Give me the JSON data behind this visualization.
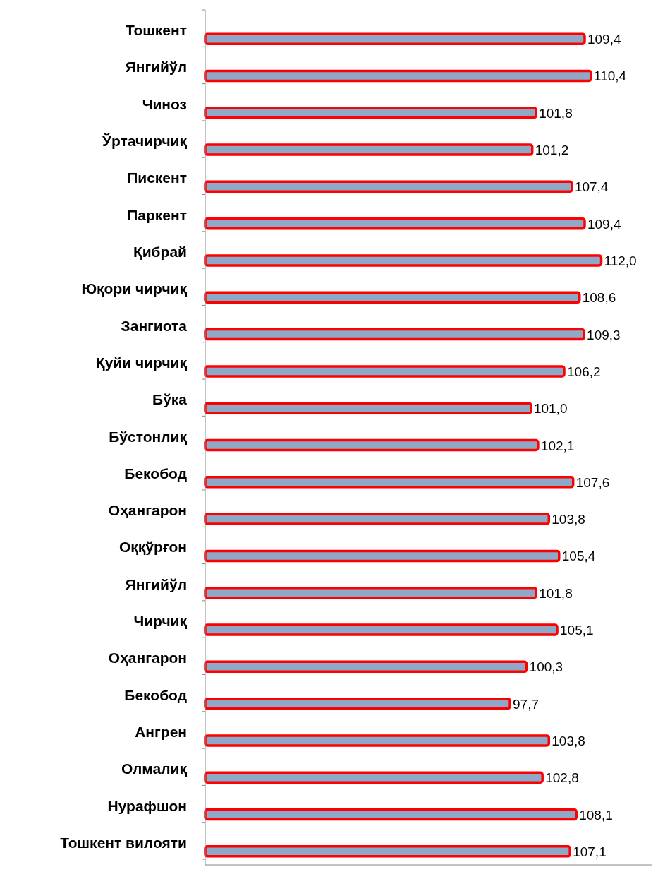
{
  "chart_data": {
    "type": "bar",
    "orientation": "horizontal",
    "categories": [
      "Тошкент",
      "Янгийўл",
      "Чиноз",
      "Ўртачирчиқ",
      "Пискент",
      "Паркент",
      "Қибрай",
      "Юқори чирчиқ",
      "Зангиота",
      "Қуйи чирчиқ",
      "Бўка",
      "Бўстонлиқ",
      "Бекобод",
      "Оҳангарон",
      "Оққўрғон",
      "Янгийўл",
      "Чирчиқ",
      "Оҳангарон",
      "Бекобод",
      "Ангрен",
      "Олмалиқ",
      "Нурафшон",
      "Тошкент вилояти"
    ],
    "values": [
      109.4,
      110.4,
      101.8,
      101.2,
      107.4,
      109.4,
      112.0,
      108.6,
      109.3,
      106.2,
      101.0,
      102.1,
      107.6,
      103.8,
      105.4,
      101.8,
      105.1,
      100.3,
      97.7,
      103.8,
      102.8,
      108.1,
      107.1
    ],
    "value_labels": [
      "109,4",
      "110,4",
      "101,8",
      "101,2",
      "107,4",
      "109,4",
      "112,0",
      "108,6",
      "109,3",
      "106,2",
      "101,0",
      "102,1",
      "107,6",
      "103,8",
      "105,4",
      "101,8",
      "105,1",
      "100,3",
      "97,7",
      "103,8",
      "102,8",
      "108,1",
      "107,1"
    ],
    "color": "#ff0000",
    "xlim": [
      50,
      120
    ],
    "tick_labels": "y"
  }
}
